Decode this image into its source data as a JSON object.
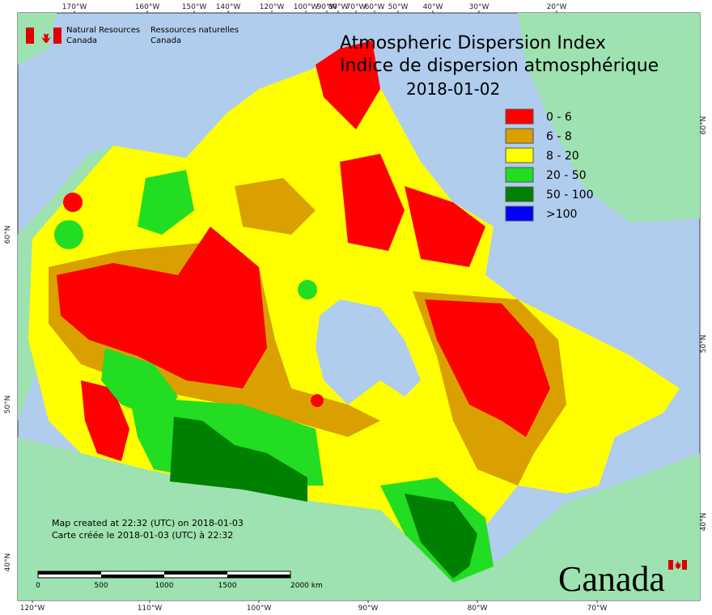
{
  "header": {
    "agency_en": [
      "Natural Resources",
      "Canada"
    ],
    "agency_fr": [
      "Ressources naturelles",
      "Canada"
    ]
  },
  "title": {
    "en": "Atmospheric Dispersion Index",
    "fr": "Indice de dispersion atmosphérique",
    "date": "2018-01-02"
  },
  "legend": [
    {
      "label": "0 - 6",
      "color": "#ff0000"
    },
    {
      "label": "6 - 8",
      "color": "#d9a000"
    },
    {
      "label": "8 - 20",
      "color": "#ffff00"
    },
    {
      "label": "20 - 50",
      "color": "#22dd22"
    },
    {
      "label": "50 - 100",
      "color": "#008000"
    },
    {
      "label": ">100",
      "color": "#0000ff"
    }
  ],
  "notes": [
    "Map created at 22:32 (UTC) on 2018-01-03",
    "Carte créée le 2018-01-03 (UTC) à 22:32"
  ],
  "scale_bar": {
    "labels": [
      "0",
      "500",
      "1000",
      "1500",
      "2000 km"
    ]
  },
  "graticule": {
    "top": [
      "170°W",
      "160°W",
      "150°W",
      "140°W",
      "120°W",
      "100°W",
      "90°W",
      "80°W",
      "70°W",
      "60°W",
      "50°W",
      "40°W",
      "30°W",
      "20°W"
    ],
    "bottom": [
      "120°W",
      "110°W",
      "100°W",
      "90°W",
      "80°W",
      "70°W"
    ],
    "left": [
      "60°N",
      "50°N",
      "40°N"
    ],
    "right": [
      "60°N",
      "50°N",
      "40°N"
    ]
  },
  "wordmark": "Canada"
}
